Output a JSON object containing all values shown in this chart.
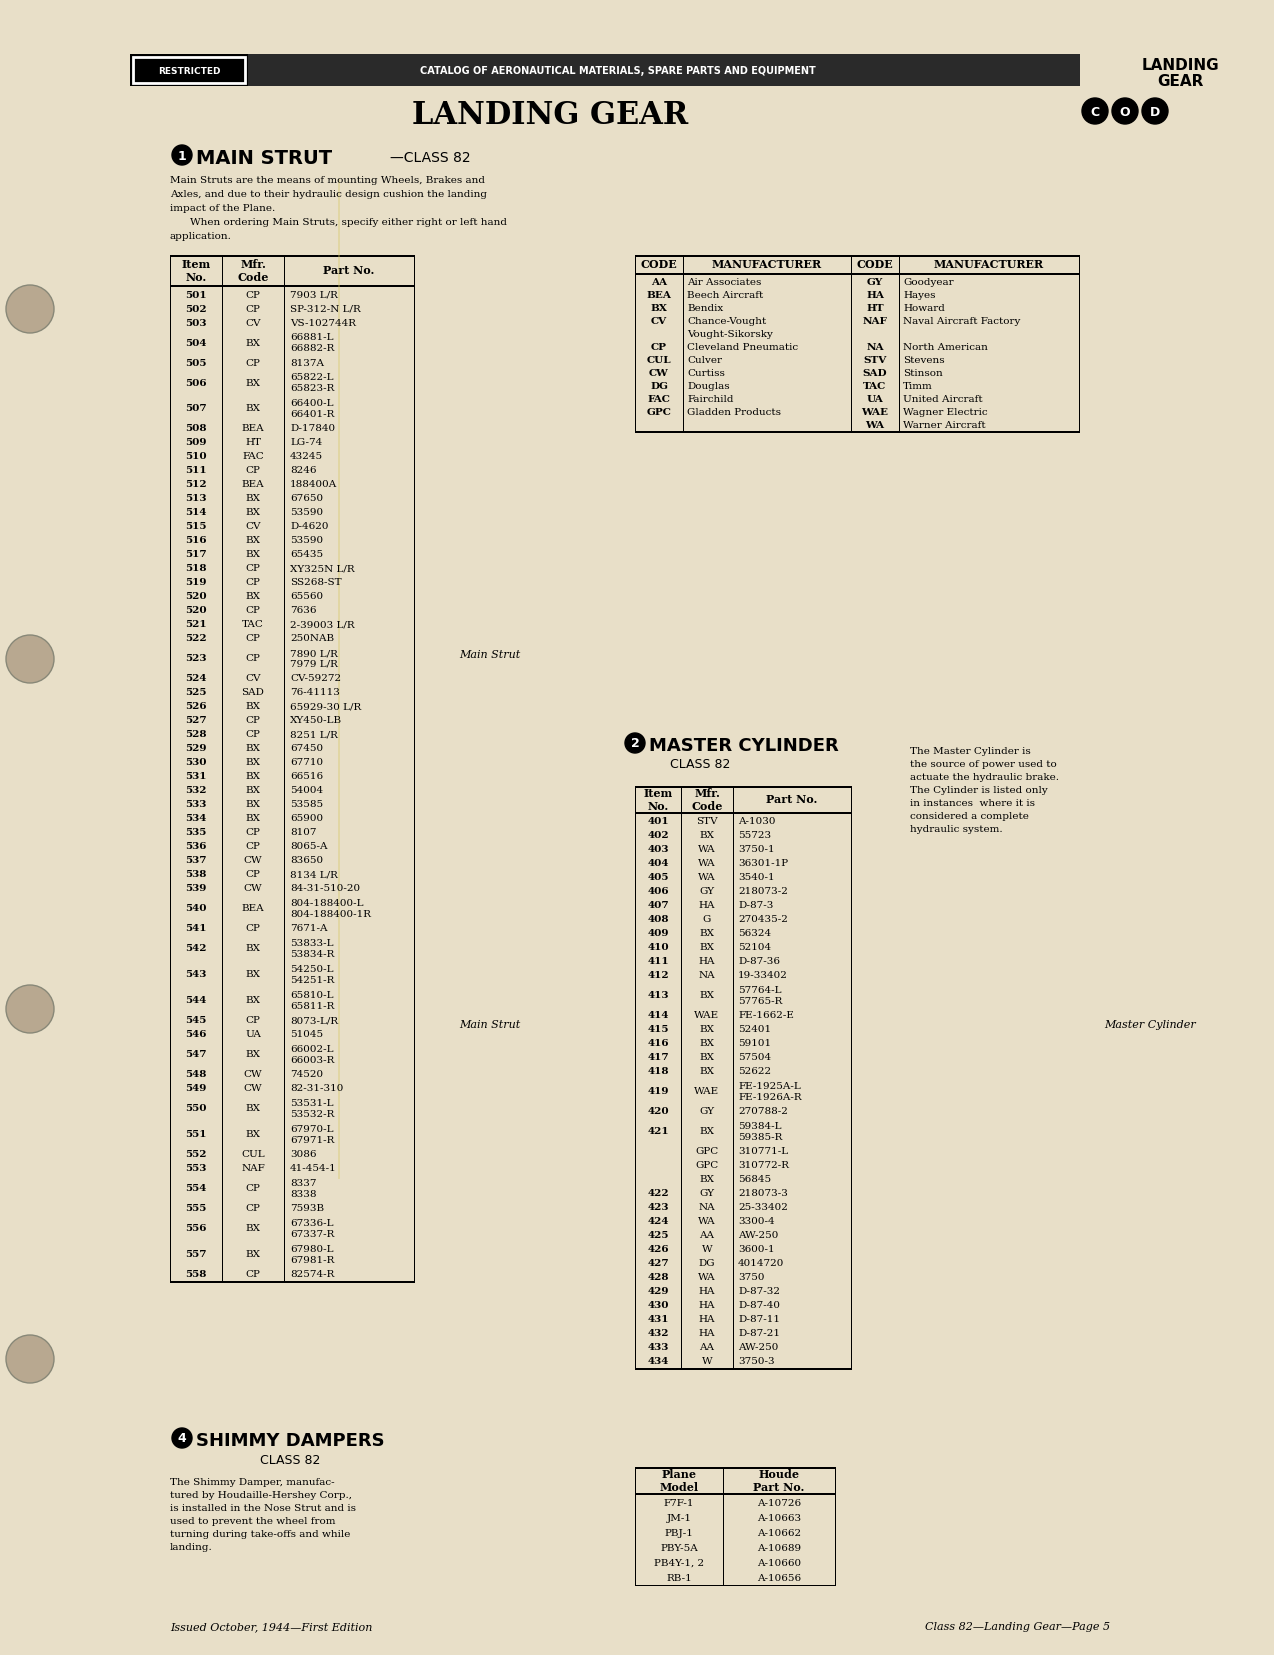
{
  "bg_color": "#e8dfc8",
  "page_width": 12.74,
  "page_height": 16.56,
  "header_text": "CATALOG OF AERONAUTICAL MATERIALS, SPARE PARTS AND EQUIPMENT",
  "restricted_text": "RESTRICTED",
  "landing_gear_header": "LANDING\nGEAR",
  "main_title": "LANDING GEAR",
  "section1_title": "MAIN STRUT",
  "section1_class": "CLASS 82",
  "section1_desc1": "Main Struts are the means of mounting Wheels, Brakes and",
  "section1_desc2": "Axles, and due to their hydraulic design cushion the landing",
  "section1_desc3": "impact of the Plane.",
  "section1_desc4": "When ordering Main Struts, specify either right or left hand",
  "section1_desc5": "application.",
  "strut_table_headers": [
    "Item\nNo.",
    "Mfr.\nCode",
    "Part No."
  ],
  "strut_table_data": [
    [
      "501",
      "CP",
      "7903 L/R"
    ],
    [
      "502",
      "CP",
      "SP-312-N L/R"
    ],
    [
      "503",
      "CV",
      "VS-102744R"
    ],
    [
      "504",
      "BX",
      "66881-L\n66882-R"
    ],
    [
      "505",
      "CP",
      "8137A"
    ],
    [
      "506",
      "BX",
      "65822-L\n65823-R"
    ],
    [
      "507",
      "BX",
      "66400-L\n66401-R"
    ],
    [
      "508",
      "BEA",
      "D-17840"
    ],
    [
      "509",
      "HT",
      "LG-74"
    ],
    [
      "510",
      "FAC",
      "43245"
    ],
    [
      "511",
      "CP",
      "8246"
    ],
    [
      "512",
      "BEA",
      "188400A"
    ],
    [
      "513",
      "BX",
      "67650"
    ],
    [
      "514",
      "BX",
      "53590"
    ],
    [
      "515",
      "CV",
      "D-4620"
    ],
    [
      "516",
      "BX",
      "53590"
    ],
    [
      "517",
      "BX",
      "65435"
    ],
    [
      "518",
      "CP",
      "XY325N L/R"
    ],
    [
      "519",
      "CP",
      "SS268-ST"
    ],
    [
      "520",
      "BX",
      "65560"
    ],
    [
      "520",
      "CP",
      "7636"
    ],
    [
      "521",
      "TAC",
      "2-39003 L/R"
    ],
    [
      "522",
      "CP",
      "250NAB"
    ],
    [
      "523",
      "CP",
      "7890 L/R\n7979 L/R"
    ],
    [
      "524",
      "CV",
      "CV-59272"
    ],
    [
      "525",
      "SAD",
      "76-41113"
    ],
    [
      "526",
      "BX",
      "65929-30 L/R"
    ],
    [
      "527",
      "CP",
      "XY450-LB"
    ],
    [
      "528",
      "CP",
      "8251 L/R"
    ],
    [
      "529",
      "BX",
      "67450"
    ],
    [
      "530",
      "BX",
      "67710"
    ],
    [
      "531",
      "BX",
      "66516"
    ],
    [
      "532",
      "BX",
      "54004"
    ],
    [
      "533",
      "BX",
      "53585"
    ],
    [
      "534",
      "BX",
      "65900"
    ],
    [
      "535",
      "CP",
      "8107"
    ],
    [
      "536",
      "CP",
      "8065-A"
    ],
    [
      "537",
      "CW",
      "83650"
    ],
    [
      "538",
      "CP",
      "8134 L/R"
    ],
    [
      "539",
      "CW",
      "84-31-510-20"
    ],
    [
      "540",
      "BEA",
      "804-188400-L\n804-188400-1R"
    ],
    [
      "541",
      "CP",
      "7671-A"
    ],
    [
      "542",
      "BX",
      "53833-L\n53834-R"
    ],
    [
      "543",
      "BX",
      "54250-L\n54251-R"
    ],
    [
      "544",
      "BX",
      "65810-L\n65811-R"
    ],
    [
      "545",
      "CP",
      "8073-L/R"
    ],
    [
      "546",
      "UA",
      "51045"
    ],
    [
      "547",
      "BX",
      "66002-L\n66003-R"
    ],
    [
      "548",
      "CW",
      "74520"
    ],
    [
      "549",
      "CW",
      "82-31-310"
    ],
    [
      "550",
      "BX",
      "53531-L\n53532-R"
    ],
    [
      "551",
      "BX",
      "67970-L\n67971-R"
    ],
    [
      "552",
      "CUL",
      "3086"
    ],
    [
      "553",
      "NAF",
      "41-454-1"
    ],
    [
      "554",
      "CP",
      "8337\n8338"
    ],
    [
      "555",
      "CP",
      "7593B"
    ],
    [
      "556",
      "BX",
      "67336-L\n67337-R"
    ],
    [
      "557",
      "BX",
      "67980-L\n67981-R"
    ],
    [
      "558",
      "CP",
      "82574-R"
    ]
  ],
  "code_table_headers": [
    "CODE",
    "MANUFACTURER",
    "CODE",
    "MANUFACTURER"
  ],
  "code_table_data": [
    [
      "AA",
      "Air Associates",
      "GY",
      "Goodyear"
    ],
    [
      "BEA",
      "Beech Aircraft",
      "HA",
      "Hayes"
    ],
    [
      "BX",
      "Bendix",
      "HT",
      "Howard"
    ],
    [
      "CV",
      "Chance-Vought",
      "NAF",
      "Naval Aircraft Factory"
    ],
    [
      "",
      "Vought-Sikorsky",
      "",
      ""
    ],
    [
      "CP",
      "Cleveland Pneumatic",
      "NA",
      "North American"
    ],
    [
      "CUL",
      "Culver",
      "STV",
      "Stevens"
    ],
    [
      "CW",
      "Curtiss",
      "SAD",
      "Stinson"
    ],
    [
      "DG",
      "Douglas",
      "TAC",
      "Timm"
    ],
    [
      "FAC",
      "Fairchild",
      "UA",
      "United Aircraft"
    ],
    [
      "GPC",
      "Gladden Products",
      "WAE",
      "Wagner Electric"
    ],
    [
      "",
      "",
      "WA",
      "Warner Aircraft"
    ]
  ],
  "section2_title": "MASTER CYLINDER",
  "section2_class": "CLASS 82",
  "section2_desc": "The Master Cylinder is\nthe source of power used to\nactuate the hydraulic brake.\nThe Cylinder is listed only\nin instances  where it is\nconsidered a complete\nhydraulic system.",
  "master_table_headers": [
    "Item\nNo.",
    "Mfr.\nCode",
    "Part No."
  ],
  "master_table_data": [
    [
      "401",
      "STV",
      "A-1030"
    ],
    [
      "402",
      "BX",
      "55723"
    ],
    [
      "403",
      "WA",
      "3750-1"
    ],
    [
      "404",
      "WA",
      "36301-1P"
    ],
    [
      "405",
      "WA",
      "3540-1"
    ],
    [
      "406",
      "GY",
      "218073-2"
    ],
    [
      "407",
      "HA",
      "D-87-3"
    ],
    [
      "408",
      "G",
      "270435-2"
    ],
    [
      "409",
      "BX",
      "56324"
    ],
    [
      "410",
      "BX",
      "52104"
    ],
    [
      "411",
      "HA",
      "D-87-36"
    ],
    [
      "412",
      "NA",
      "19-33402"
    ],
    [
      "413",
      "BX",
      "57764-L\n57765-R"
    ],
    [
      "414",
      "WAE",
      "FE-1662-E"
    ],
    [
      "415",
      "BX",
      "52401"
    ],
    [
      "416",
      "BX",
      "59101"
    ],
    [
      "417",
      "BX",
      "57504"
    ],
    [
      "418",
      "BX",
      "52622"
    ],
    [
      "419",
      "WAE",
      "FE-1925A-L\nFE-1926A-R"
    ],
    [
      "420",
      "GY",
      "270788-2"
    ],
    [
      "421",
      "BX",
      "59384-L\n59385-R"
    ],
    [
      "",
      "GPC",
      "310771-L"
    ],
    [
      "",
      "GPC",
      "310772-R"
    ],
    [
      "",
      "BX",
      "56845"
    ],
    [
      "422",
      "GY",
      "218073-3"
    ],
    [
      "423",
      "NA",
      "25-33402"
    ],
    [
      "424",
      "WA",
      "3300-4"
    ],
    [
      "425",
      "AA",
      "AW-250"
    ],
    [
      "426",
      "W",
      "3600-1"
    ],
    [
      "427",
      "DG",
      "4014720"
    ],
    [
      "428",
      "WA",
      "3750"
    ],
    [
      "429",
      "HA",
      "D-87-32"
    ],
    [
      "430",
      "HA",
      "D-87-40"
    ],
    [
      "431",
      "HA",
      "D-87-11"
    ],
    [
      "432",
      "HA",
      "D-87-21"
    ],
    [
      "433",
      "AA",
      "AW-250"
    ],
    [
      "434",
      "W",
      "3750-3"
    ]
  ],
  "section3_title": "SHIMMY DAMPERS",
  "section3_class": "CLASS 82",
  "section3_desc1": "The Shimmy Damper, manufac-",
  "section3_desc2": "tured by Houdaille-Hershey Corp.,",
  "section3_desc3": "is installed in the Nose Strut and is",
  "section3_desc4": "used to prevent the wheel from",
  "section3_desc5": "turning during take-offs and while",
  "section3_desc6": "landing.",
  "shimmy_table_headers": [
    "Plane\nModel",
    "Houde\nPart No."
  ],
  "shimmy_table_data": [
    [
      "F7F-1",
      "A-10726"
    ],
    [
      "JM-1",
      "A-10663"
    ],
    [
      "PBJ-1",
      "A-10662"
    ],
    [
      "PBY-5A",
      "A-10689"
    ],
    [
      "PB4Y-1, 2",
      "A-10660"
    ],
    [
      "RB-1",
      "A-10656"
    ]
  ],
  "footer_left": "Issued October, 1944—First Edition",
  "footer_right": "Class 82—Landing Gear—Page 5"
}
